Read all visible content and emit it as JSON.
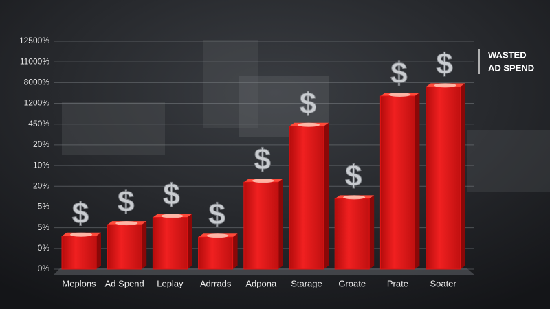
{
  "chart_data": {
    "type": "bar",
    "annotation_lines": [
      "WASTED",
      "AD SPEND"
    ],
    "icon": "$",
    "y_axis_labels": [
      "0%",
      "0%",
      "5%",
      "5%",
      "20%",
      "10%",
      "20%",
      "450%",
      "1200%",
      "8000%",
      "11000%",
      "12500%"
    ],
    "categories": [
      "Meplons",
      "Ad Spend",
      "Leplay",
      "Adrrads",
      "Adpona",
      "Starage",
      "Groate",
      "Prate",
      "Soater"
    ],
    "values": [
      1.6,
      2.15,
      2.5,
      1.55,
      4.2,
      6.9,
      3.4,
      8.35,
      8.8
    ],
    "color": "#e01414",
    "ylim": [
      0,
      11
    ],
    "grid": true
  }
}
